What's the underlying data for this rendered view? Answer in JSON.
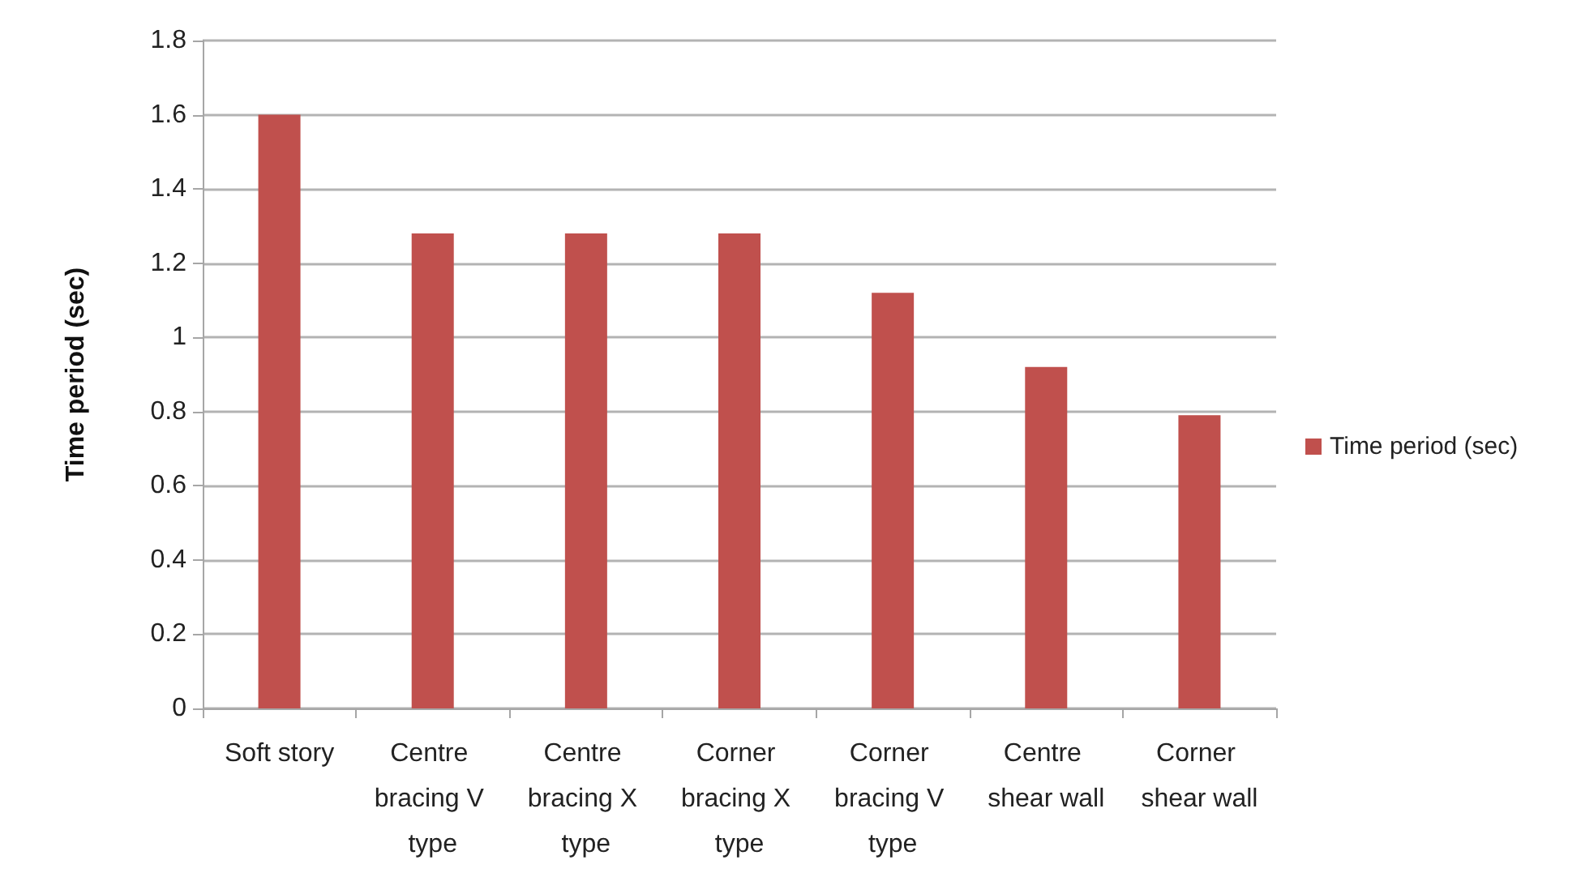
{
  "chart_data": {
    "type": "bar",
    "ylabel": "Time period (sec)",
    "categories": [
      "Soft story",
      "Centre bracing V type",
      "Centre bracing X type",
      "Corner bracing X type",
      "Corner bracing V type",
      "Centre shear wall",
      "Corner shear wall"
    ],
    "series": [
      {
        "name": "Time period (sec)",
        "color": "#c0504d",
        "values": [
          1.6,
          1.28,
          1.28,
          1.28,
          1.12,
          0.92,
          0.79
        ]
      }
    ],
    "ylim": [
      0,
      1.8
    ],
    "yticks": [
      0,
      0.2,
      0.4,
      0.6,
      0.8,
      1,
      1.2,
      1.4,
      1.6,
      1.8
    ],
    "grid": "y",
    "legend": "right"
  }
}
